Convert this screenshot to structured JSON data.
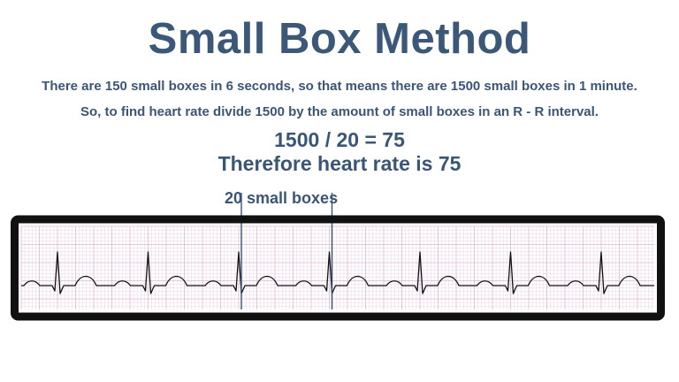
{
  "title": "Small Box Method",
  "explanation": {
    "line1": "There are 150 small boxes in 6 seconds, so that means there are 1500 small boxes in 1 minute.",
    "line2": "So, to find heart rate divide 1500 by the amount of small boxes in an R - R interval."
  },
  "calculation": {
    "equation": "1500 / 20 = 75",
    "conclusion": "Therefore heart rate is 75"
  },
  "ecg_strip": {
    "interval_label": "20 small boxes",
    "beat_count": 7,
    "marked_interval_beats": [
      3,
      4
    ],
    "grid_color": "#e9d2e4",
    "grid_major_color": "#dcb8d4",
    "trace_color": "#111111",
    "marker_color": "#3a5676",
    "frame_color": "#111111"
  }
}
